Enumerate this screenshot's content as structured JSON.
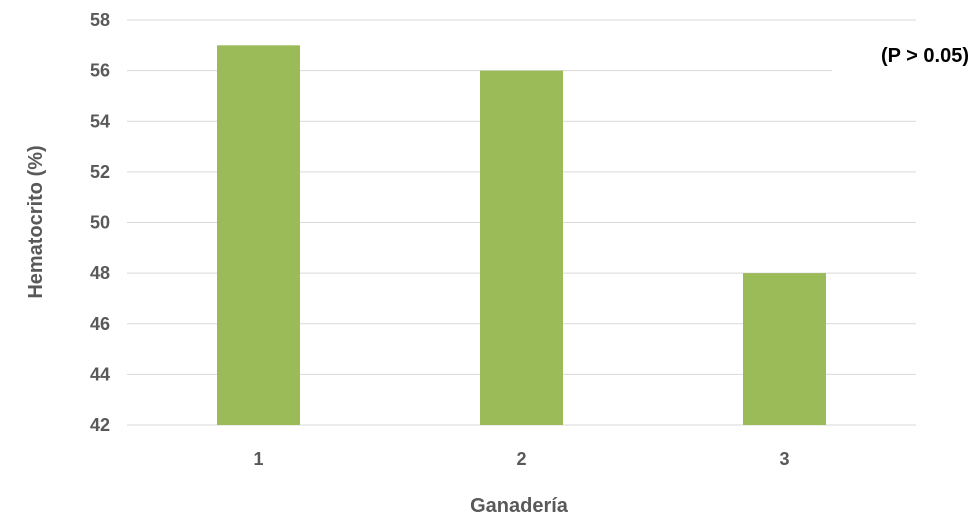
{
  "chart_data": {
    "type": "bar",
    "categories": [
      "1",
      "2",
      "3"
    ],
    "values": [
      57,
      56,
      48
    ],
    "xlabel": "Ganadería",
    "ylabel": "Hematocrito (%)",
    "ylim": [
      42,
      58
    ],
    "yticks": [
      42,
      44,
      46,
      48,
      50,
      52,
      54,
      56,
      58
    ],
    "grid": true,
    "annotation": "(P > 0.05)",
    "bar_color": "#9bbb59",
    "grid_color": "#d9d9d9",
    "text_color": "#595959"
  }
}
